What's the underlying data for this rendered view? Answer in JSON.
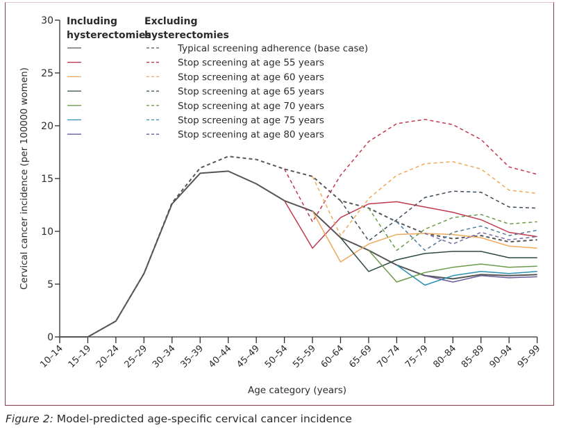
{
  "caption": {
    "label": "Figure 2:",
    "text": " Model-predicted age-specific cervical cancer incidence"
  },
  "chart_data": {
    "type": "line",
    "title": "",
    "xlabel": "Age category (years)",
    "ylabel": "Cervical cancer incidence (per 100000 women)",
    "ylim": [
      0,
      30
    ],
    "yticks": [
      0,
      5,
      10,
      15,
      20,
      25,
      30
    ],
    "grid": false,
    "legend_position": "top-left",
    "legend_headers": [
      "Including\nhysterectomies",
      "Excluding\nhysterectomies"
    ],
    "legend_header_including": [
      "Including",
      "hysterectomies"
    ],
    "legend_header_excluding": [
      "Excluding",
      "hysterectomies"
    ],
    "categories": [
      "10–14",
      "15–19",
      "20–24",
      "25–29",
      "30–34",
      "35–39",
      "40–44",
      "45–49",
      "50–54",
      "55–59",
      "60–64",
      "65–69",
      "70–74",
      "75–79",
      "80–84",
      "85–89",
      "90–94",
      "95–99"
    ],
    "series": [
      {
        "name": "Typical screening adherence (base case)",
        "scenario": "base",
        "style": "solid",
        "color": "#555555",
        "values": [
          0,
          0,
          1.5,
          6.0,
          12.6,
          15.5,
          15.7,
          14.5,
          12.9,
          11.9,
          9.4,
          8.2,
          6.8,
          5.8,
          5.5,
          5.9,
          5.8,
          5.9
        ]
      },
      {
        "name": "Typical screening adherence (base case)",
        "scenario": "base",
        "style": "dashed",
        "color": "#555555",
        "values": [
          0,
          0,
          1.5,
          6.0,
          12.7,
          16.0,
          17.1,
          16.8,
          15.9,
          15.2,
          12.9,
          12.2,
          10.9,
          9.8,
          9.3,
          9.6,
          9.0,
          9.2
        ]
      },
      {
        "name": "Stop screening at age 55 years",
        "scenario": "55",
        "style": "solid",
        "color": "#c0394b",
        "values": [
          null,
          null,
          null,
          null,
          null,
          null,
          null,
          null,
          12.9,
          8.4,
          11.3,
          12.6,
          12.8,
          12.3,
          11.8,
          11.1,
          9.9,
          9.5
        ]
      },
      {
        "name": "Stop screening at age 55 years",
        "scenario": "55",
        "style": "dashed",
        "color": "#c0394b",
        "values": [
          null,
          null,
          null,
          null,
          null,
          null,
          null,
          null,
          15.9,
          10.9,
          15.3,
          18.5,
          20.2,
          20.6,
          20.1,
          18.7,
          16.1,
          15.4
        ]
      },
      {
        "name": "Stop screening at age 60 years",
        "scenario": "60",
        "style": "solid",
        "color": "#f0a85a",
        "values": [
          null,
          null,
          null,
          null,
          null,
          null,
          null,
          null,
          null,
          11.9,
          7.1,
          8.8,
          9.7,
          9.8,
          9.7,
          9.4,
          8.6,
          8.4
        ]
      },
      {
        "name": "Stop screening at age 60 years",
        "scenario": "60",
        "style": "dashed",
        "color": "#f0a85a",
        "values": [
          null,
          null,
          null,
          null,
          null,
          null,
          null,
          null,
          null,
          15.2,
          9.6,
          13.1,
          15.3,
          16.4,
          16.6,
          15.9,
          13.9,
          13.6
        ]
      },
      {
        "name": "Stop screening at age 65 years",
        "scenario": "65",
        "style": "solid",
        "color": "#2d4a3e",
        "values": [
          null,
          null,
          null,
          null,
          null,
          null,
          null,
          null,
          null,
          null,
          9.4,
          6.2,
          7.3,
          7.9,
          8.1,
          8.1,
          7.5,
          7.5
        ]
      },
      {
        "name": "Stop screening at age 65 years",
        "scenario": "65",
        "style": "dashed",
        "color": "#3a4a5a",
        "values": [
          null,
          null,
          null,
          null,
          null,
          null,
          null,
          null,
          null,
          null,
          12.9,
          9.1,
          11.1,
          13.2,
          13.8,
          13.7,
          12.3,
          12.2
        ]
      },
      {
        "name": "Stop screening at age 70 years",
        "scenario": "70",
        "style": "solid",
        "color": "#6a9a4a",
        "values": [
          null,
          null,
          null,
          null,
          null,
          null,
          null,
          null,
          null,
          null,
          null,
          8.2,
          5.2,
          6.1,
          6.6,
          6.9,
          6.6,
          6.7
        ]
      },
      {
        "name": "Stop screening at age 70 years",
        "scenario": "70",
        "style": "dashed",
        "color": "#6a9a4a",
        "values": [
          null,
          null,
          null,
          null,
          null,
          null,
          null,
          null,
          null,
          null,
          null,
          12.2,
          8.2,
          10.2,
          11.3,
          11.6,
          10.7,
          10.9
        ]
      },
      {
        "name": "Stop screening at age 75 years",
        "scenario": "75",
        "style": "solid",
        "color": "#2a8fb0",
        "values": [
          null,
          null,
          null,
          null,
          null,
          null,
          null,
          null,
          null,
          null,
          null,
          null,
          6.8,
          4.9,
          5.8,
          6.2,
          6.0,
          6.2
        ]
      },
      {
        "name": "Stop screening at age 75 years",
        "scenario": "75",
        "style": "dashed",
        "color": "#4a7a9a",
        "values": [
          null,
          null,
          null,
          null,
          null,
          null,
          null,
          null,
          null,
          null,
          null,
          null,
          10.9,
          8.2,
          9.9,
          10.5,
          9.6,
          10.1
        ]
      },
      {
        "name": "Stop screening at age 80 years",
        "scenario": "80",
        "style": "solid",
        "color": "#6a5a9a",
        "values": [
          null,
          null,
          null,
          null,
          null,
          null,
          null,
          null,
          null,
          null,
          null,
          null,
          null,
          5.8,
          5.2,
          5.8,
          5.6,
          5.7
        ]
      },
      {
        "name": "Stop screening at age 80 years",
        "scenario": "80",
        "style": "dashed",
        "color": "#7a6aa8",
        "values": [
          null,
          null,
          null,
          null,
          null,
          null,
          null,
          null,
          null,
          null,
          null,
          null,
          null,
          9.8,
          8.8,
          9.9,
          9.2,
          9.5
        ]
      }
    ],
    "legend_entries": [
      {
        "label": "Typical screening adherence (base case)",
        "color": "#555555"
      },
      {
        "label": "Stop screening at age 55 years",
        "color": "#c0394b"
      },
      {
        "label": "Stop screening at age 60 years",
        "color": "#f0a85a"
      },
      {
        "label": "Stop screening at age 65 years",
        "color": "#2d4a3e"
      },
      {
        "label": "Stop screening at age 70 years",
        "color": "#6a9a4a"
      },
      {
        "label": "Stop screening at age 75 years",
        "color": "#2a8fb0"
      },
      {
        "label": "Stop screening at age 80 years",
        "color": "#6a5a9a"
      }
    ]
  }
}
